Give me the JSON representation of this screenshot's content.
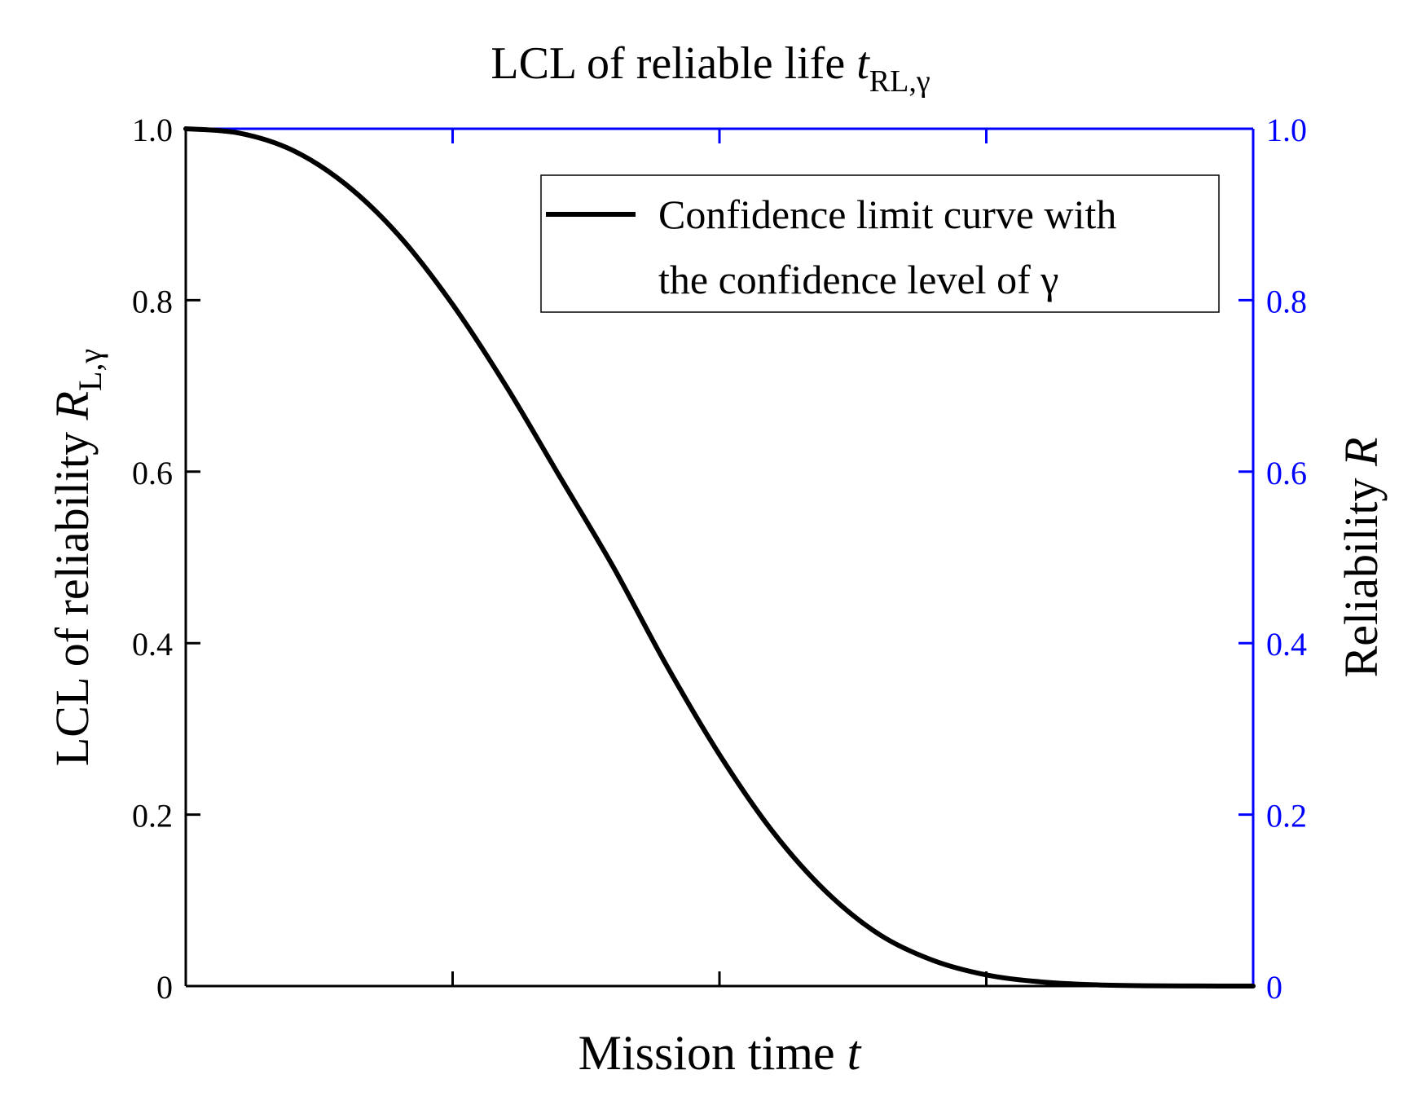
{
  "chart_data": {
    "type": "line",
    "title": {
      "main": "LCL of reliable life ",
      "var": "t",
      "sub": "RL,γ"
    },
    "xlabel": {
      "main": "Mission time ",
      "var": "t"
    },
    "ylabel_left": {
      "main": "LCL of reliability ",
      "var": "R",
      "sub": "L,γ"
    },
    "ylabel_right": {
      "main": "Reliability ",
      "var": "R"
    },
    "xlim": [
      0,
      4
    ],
    "x_ticks": [
      1,
      2,
      3
    ],
    "ylim": [
      0,
      1
    ],
    "y_ticks": [
      0,
      0.2,
      0.4,
      0.6,
      0.8,
      1.0
    ],
    "y_tick_labels_left": [
      "0",
      "0.2",
      "0.4",
      "0.6",
      "0.8",
      "1.0"
    ],
    "y_tick_labels_right": [
      "0",
      "0.2",
      "0.4",
      "0.6",
      "0.8",
      "1.0"
    ],
    "grid": false,
    "legend": {
      "position": "top-right",
      "lines": [
        "Confidence limit curve with",
        "the confidence level of γ"
      ]
    },
    "series": [
      {
        "name": "Confidence limit curve with the confidence level of γ",
        "color": "#000000",
        "x": [
          0,
          0.2,
          0.4,
          0.6,
          0.8,
          1.0,
          1.2,
          1.4,
          1.6,
          1.8,
          2.0,
          2.2,
          2.4,
          2.6,
          2.8,
          3.0,
          3.2,
          3.4,
          3.6,
          3.8,
          4.0
        ],
        "y": [
          1.0,
          0.995,
          0.975,
          0.935,
          0.875,
          0.795,
          0.7,
          0.595,
          0.49,
          0.375,
          0.27,
          0.18,
          0.11,
          0.06,
          0.03,
          0.013,
          0.005,
          0.0015,
          0.0004,
          0.0001,
          0.0
        ]
      }
    ],
    "colors": {
      "left_axis": "#000000",
      "right_axis": "#0000ff",
      "curve": "#000000"
    }
  }
}
